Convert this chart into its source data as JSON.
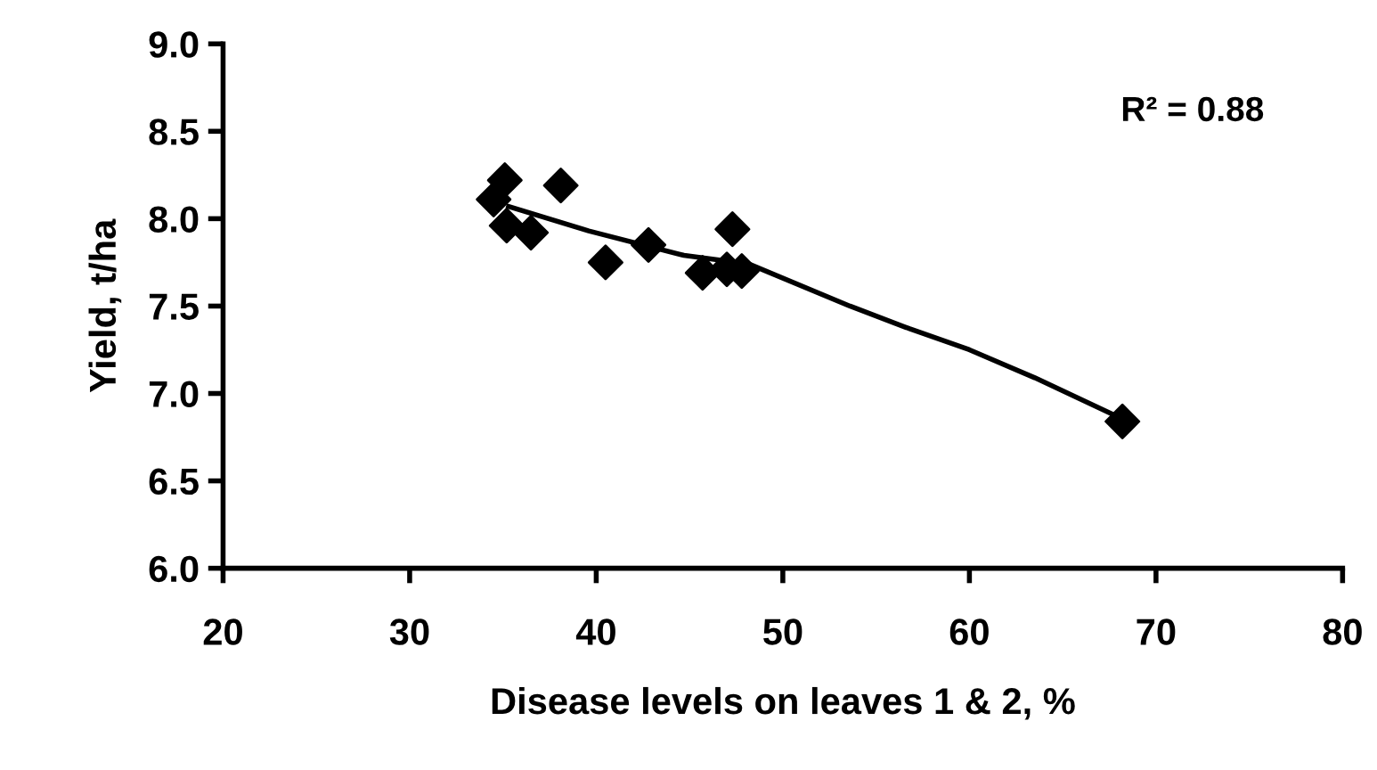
{
  "chart_data": {
    "type": "scatter",
    "xlabel": "Disease levels on leaves 1 & 2, %",
    "ylabel": "Yield, t/ha",
    "annotations": [
      "R² = 0.88"
    ],
    "series": [
      {
        "color": "#000000",
        "marker": "diamond",
        "x": [
          35.1,
          34.5,
          35.2,
          36.5,
          38.1,
          40.5,
          42.8,
          45.7,
          47.0,
          47.8,
          47.3,
          68.2
        ],
        "values": [
          8.22,
          8.11,
          7.96,
          7.92,
          8.19,
          7.75,
          7.85,
          7.69,
          7.71,
          7.7,
          7.94,
          6.84
        ]
      },
      {
        "type": "line",
        "color": "#000000",
        "line_style": "solid",
        "x": [
          35.3,
          39.6,
          44.7,
          48.2,
          53.6,
          56.8,
          60.0,
          63.5,
          67.9
        ],
        "values": [
          8.07,
          7.93,
          7.79,
          7.74,
          7.5,
          7.37,
          7.25,
          7.09,
          6.87
        ]
      }
    ],
    "xlim": [
      20,
      80
    ],
    "xticks": [
      20,
      30,
      40,
      50,
      60,
      70,
      80
    ],
    "ylim": [
      6.0,
      9.0
    ],
    "yticks": [
      {
        "value": 6.0,
        "label": "6.0"
      },
      {
        "value": 6.5,
        "label": "6.5"
      },
      {
        "value": 7.0,
        "label": "7.0"
      },
      {
        "value": 7.5,
        "label": "7.5"
      },
      {
        "value": 8.0,
        "label": "8.0"
      },
      {
        "value": 8.5,
        "label": "8.5"
      },
      {
        "value": 9.0,
        "label": "9.0"
      }
    ],
    "grid": false,
    "legend": false
  }
}
